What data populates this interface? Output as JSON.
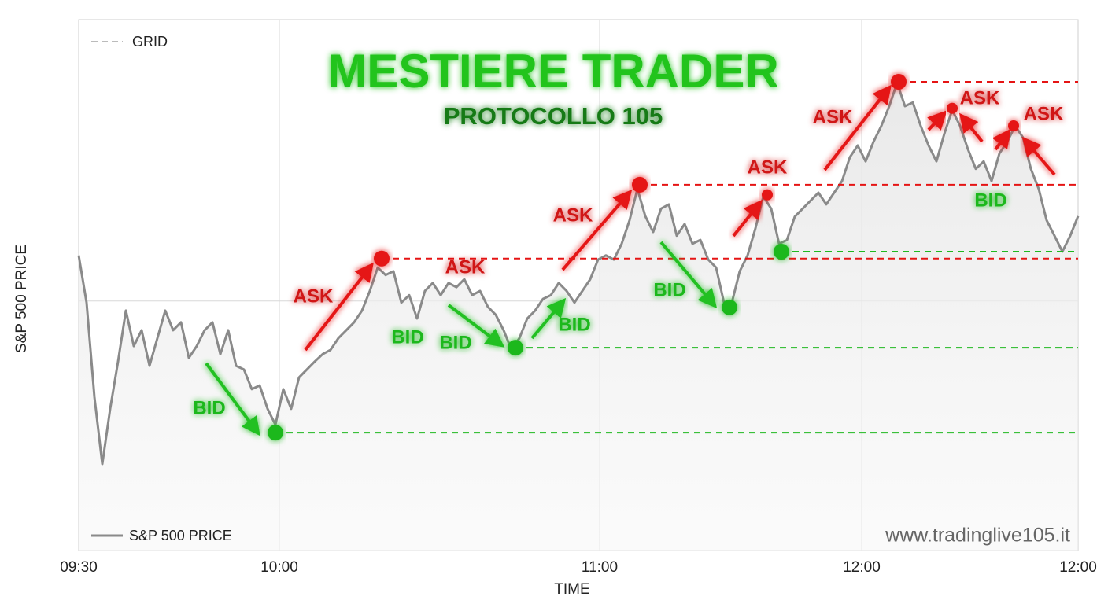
{
  "chart_data": {
    "type": "line",
    "title": "MESTIERE TRADER",
    "subtitle": "PROTOCOLLO 105",
    "x_label": "TIME",
    "y_label": "S&P 500 PRICE",
    "watermark": "www.tradinglive105.it",
    "grid_label": "GRID",
    "grid": true,
    "xlim": [
      0,
      127
    ],
    "xticks": [
      {
        "value": 0,
        "label": "09:30"
      },
      {
        "value": 25.5,
        "label": "10:00"
      },
      {
        "value": 66.2,
        "label": "11:00"
      },
      {
        "value": 99.5,
        "label": "12:00"
      },
      {
        "value": 127,
        "label": "12:00"
      }
    ],
    "ylim": [
      0,
      100
    ],
    "ygrid": [
      47,
      86
    ],
    "series": [
      {
        "name": "S&P 500 PRICE",
        "color": "#8a8a8a",
        "values": [
          55.6,
          46.7,
          28.9,
          16.3,
          26.7,
          35.6,
          45.2,
          38.5,
          41.5,
          34.8,
          40,
          45.2,
          41.5,
          43,
          36.3,
          38.5,
          41.5,
          43,
          37,
          41.5,
          34.8,
          34.1,
          30.4,
          31.1,
          26.7,
          23.7,
          30.4,
          26.7,
          32.6,
          34.1,
          35.6,
          37,
          37.8,
          40,
          41.5,
          43,
          45.2,
          48.9,
          53.3,
          51.9,
          52.6,
          46.7,
          48.1,
          43.7,
          48.9,
          50.4,
          48.1,
          50.4,
          49.6,
          51.1,
          48.1,
          48.9,
          45.9,
          44.4,
          41.5,
          37.8,
          40,
          43.7,
          45.2,
          47.4,
          48.1,
          50.4,
          48.9,
          46.7,
          48.9,
          51.1,
          54.8,
          55.6,
          54.8,
          57.8,
          62.2,
          68.1,
          63,
          60,
          64.4,
          65.2,
          59.3,
          61.5,
          57.8,
          58.5,
          54.8,
          53.3,
          46.7,
          46.7,
          52.6,
          55.6,
          60.7,
          66.7,
          64.4,
          57.8,
          58.5,
          62.9,
          64.4,
          65.9,
          67.4,
          65.2,
          67.4,
          69.6,
          74.1,
          76.3,
          73.3,
          77,
          80,
          83.7,
          88.1,
          83.7,
          84.4,
          80,
          76.3,
          73.3,
          78.5,
          83,
          80,
          75.6,
          71.9,
          73.3,
          69.6,
          74.8,
          77,
          80,
          77.8,
          71.9,
          68.1,
          62.2,
          59.3,
          56.3,
          59.3,
          63
        ]
      }
    ],
    "markers": [
      {
        "color": "#1fb81f",
        "x": [
          25,
          55.5,
          82.7,
          89.3
        ],
        "values": [
          22.2,
          38.2,
          45.8,
          56.3
        ],
        "level": [
          true,
          true,
          false,
          true
        ]
      },
      {
        "color": "#e51414",
        "x": [
          38.5,
          71.3,
          87.5,
          104.2,
          111,
          118.8
        ],
        "values": [
          55,
          68.9,
          67,
          88.3,
          83.3,
          80
        ],
        "level": [
          true,
          true,
          false,
          true,
          false,
          false
        ]
      }
    ],
    "annotations": [
      "BID",
      "ASK",
      "ASK",
      "BID",
      "BID",
      "BID",
      "ASK",
      "ASK",
      "BID",
      "ASK",
      "ASK",
      "ASK",
      "BID"
    ]
  }
}
